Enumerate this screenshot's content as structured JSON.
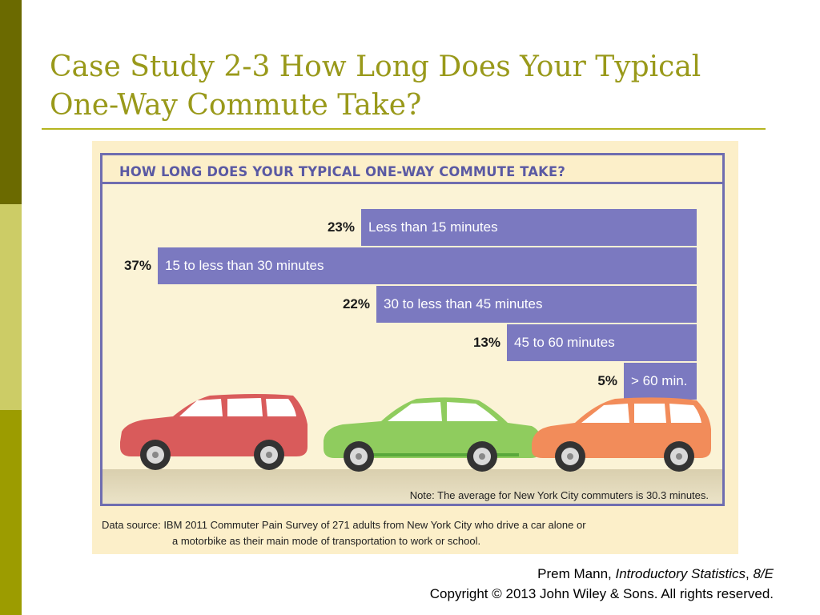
{
  "slide": {
    "title_line1": "Case Study 2-3 How Long Does Your Typical",
    "title_line2": "One-Way Commute Take?"
  },
  "chart_data": {
    "type": "bar",
    "orientation": "horizontal",
    "title": "HOW LONG DOES YOUR TYPICAL ONE-WAY COMMUTE TAKE?",
    "categories": [
      "Less than 15 minutes",
      "15 to less than 30 minutes",
      "30 to less than 45 minutes",
      "45 to 60 minutes",
      "> 60 min."
    ],
    "values": [
      23,
      37,
      22,
      13,
      5
    ],
    "value_labels": [
      "23%",
      "37%",
      "22%",
      "13%",
      "5%"
    ],
    "bar_color": "#7b79c0",
    "note": "Note: The average for New York City commuters is 30.3 minutes.",
    "source_line1": "Data source: IBM 2011 Commuter Pain Survey of 271 adults from New York City who drive a car alone or",
    "source_line2": "a motorbike as their main mode of transportation to work or school."
  },
  "illustration": {
    "car_colors": [
      "#d95b5b",
      "#8fcc5e",
      "#f28c5a"
    ]
  },
  "credit": {
    "author": "Prem Mann,",
    "book": "Introductory Statistics",
    "edition": "8/E",
    "copyright": "Copyright © 2013 John Wiley & Sons. All rights reserved."
  }
}
